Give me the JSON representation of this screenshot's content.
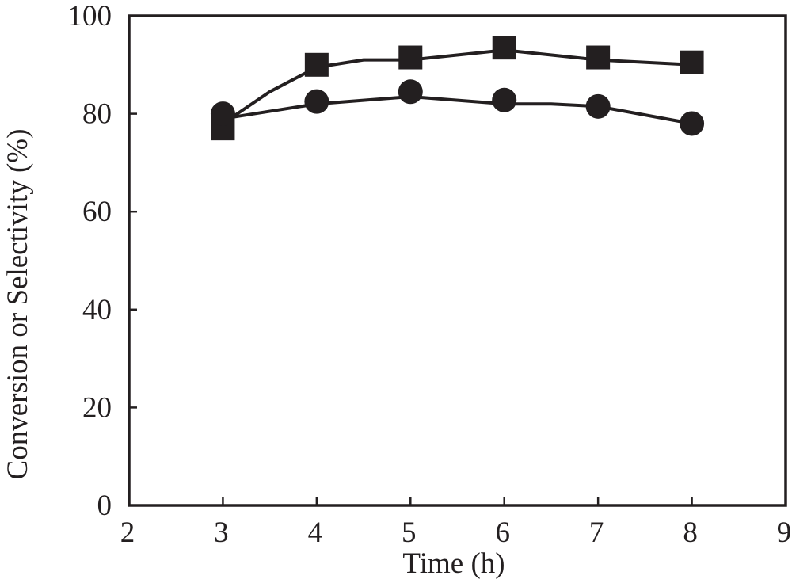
{
  "chart_data": {
    "type": "line",
    "xlabel": "Time (h)",
    "ylabel": "Conversion or Selectivity (%)",
    "xlim": [
      2,
      9
    ],
    "ylim": [
      0,
      100
    ],
    "xticks": [
      2,
      3,
      4,
      5,
      6,
      7,
      8,
      9
    ],
    "yticks": [
      0,
      20,
      40,
      60,
      80,
      100
    ],
    "grid": false,
    "legend": "none",
    "colors": {
      "ink": "#231f20",
      "background": "#ffffff"
    },
    "series": [
      {
        "marker": "square",
        "x": [
          3,
          4,
          5,
          6,
          7,
          8
        ],
        "y": [
          77,
          90,
          91.5,
          93.5,
          91.5,
          90.5
        ],
        "line_x": [
          3,
          3.5,
          4,
          4.5,
          5,
          6,
          7,
          8
        ],
        "line_y": [
          78,
          84.5,
          89.5,
          91,
          91,
          93,
          91,
          90
        ]
      },
      {
        "marker": "circle",
        "x": [
          3,
          4,
          5,
          6,
          7,
          8
        ],
        "y": [
          80,
          82.5,
          84.5,
          82.8,
          81.5,
          78
        ],
        "line_x": [
          3,
          4,
          5,
          6,
          6.5,
          7,
          8
        ],
        "line_y": [
          79,
          82,
          83.5,
          82,
          82,
          81.5,
          78
        ]
      }
    ]
  }
}
